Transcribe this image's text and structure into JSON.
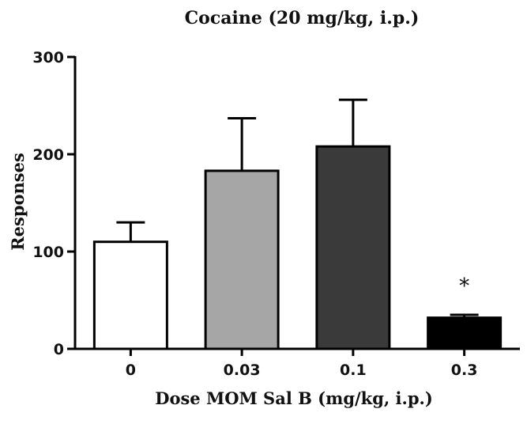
{
  "chart_data": {
    "type": "bar",
    "title": "Cocaine (20 mg/kg, i.p.)",
    "xlabel": "Dose MOM Sal B (mg/kg, i.p.)",
    "ylabel": "Responses",
    "categories": [
      "0",
      "0.03",
      "0.1",
      "0.3"
    ],
    "values": [
      110,
      183,
      208,
      32
    ],
    "errors": [
      20,
      54,
      48,
      3
    ],
    "bar_colors": [
      "#ffffff",
      "#a6a6a6",
      "#3a3a3a",
      "#000000"
    ],
    "annotations": [
      {
        "category": "0.3",
        "text": "*"
      }
    ],
    "ylim": [
      0,
      300
    ],
    "yticks": [
      0,
      100,
      200,
      300
    ],
    "grid": false,
    "legend": "none"
  }
}
